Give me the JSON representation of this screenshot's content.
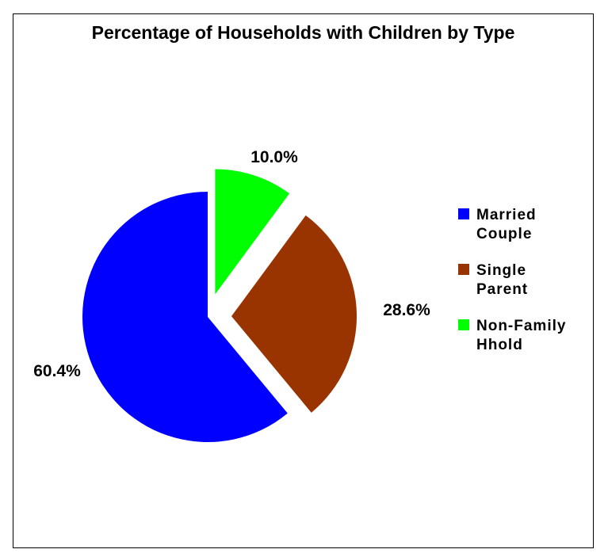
{
  "chart_data": {
    "type": "pie",
    "title": "Percentage of Households with Children by Type",
    "slices": [
      {
        "name": "Married Couple",
        "value": 60.4,
        "label": "60.4%",
        "color": "#0000FF",
        "legend_lines": [
          "Married",
          "Couple"
        ]
      },
      {
        "name": "Single Parent",
        "value": 28.6,
        "label": "28.6%",
        "color": "#993300",
        "legend_lines": [
          "Single",
          "Parent"
        ]
      },
      {
        "name": "Non-Family Hhold",
        "value": 10.0,
        "label": "10.0%",
        "color": "#00FF00",
        "legend_lines": [
          "Non-Family",
          "Hhold"
        ]
      }
    ],
    "exploded": true,
    "legend": "right",
    "grid": false
  }
}
